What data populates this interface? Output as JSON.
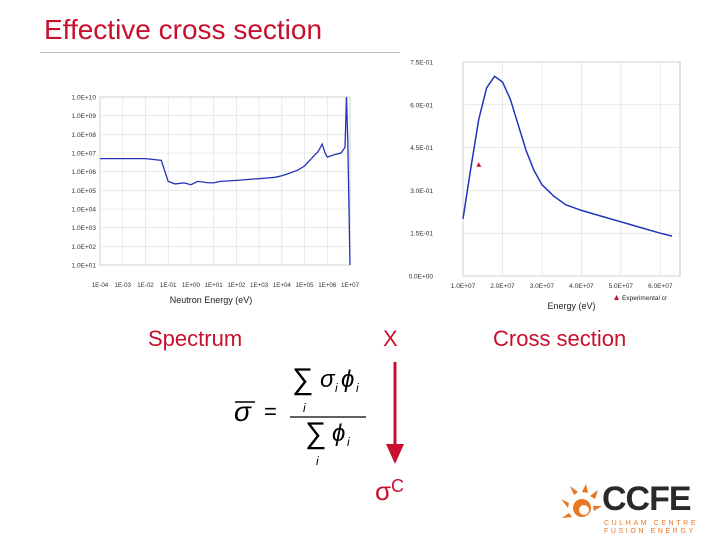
{
  "title": "Effective cross section",
  "labels": {
    "spectrum": "Spectrum",
    "times": "X",
    "cross_section": "Cross section",
    "result_symbol": "σ",
    "result_sub": "C"
  },
  "formula": {
    "lhs": "σ",
    "numerator": "σ",
    "numerator_flux": "ϕ",
    "denominator_flux": "ϕ",
    "index": "i",
    "sum": "∑",
    "equals": "="
  },
  "logo": {
    "name": "CCFE",
    "line1": "CULHAM CENTRE",
    "line2": "FUSION ENERGY"
  },
  "colors": {
    "accent": "#c8102e",
    "line": "#2233bb",
    "logo_orange": "#e87722"
  },
  "chart_data": [
    {
      "type": "line",
      "scale": "log-log",
      "xlabel": "Neutron Energy (eV)",
      "ylabel": "",
      "x_ticks": [
        "1E-04",
        "1E-03",
        "1E-02",
        "1E-01",
        "1E+00",
        "1E+01",
        "1E+02",
        "1E+03",
        "1E+04",
        "1E+05",
        "1E+06",
        "1E+07"
      ],
      "y_ticks": [
        "1.0E+10",
        "1.0E+09",
        "1.0E+08",
        "1.0E+07",
        "1.0E+06",
        "1.0E+05",
        "1.0E+04",
        "1.0E+03",
        "1.0E+02",
        "1.0E+01"
      ],
      "xlim": [
        0.0001,
        10000000.0
      ],
      "ylim": [
        10,
        10000000000.0
      ],
      "grid": true,
      "series": [
        {
          "x": [
            0.0001,
            0.001,
            0.01,
            0.05,
            0.1,
            0.2,
            0.5,
            1,
            2,
            5,
            10,
            20,
            50,
            100,
            200,
            500,
            1000,
            2000,
            5000,
            10000.0,
            20000.0,
            50000.0,
            100000.0,
            200000.0,
            400000.0,
            600000.0,
            800000.0,
            1000000.0,
            2000000.0,
            4000000.0,
            6000000.0,
            7000000.0,
            8000000.0,
            10000000.0
          ],
          "y": [
            5000000.0,
            5000000.0,
            5000000.0,
            4000000.0,
            300000.0,
            220000.0,
            250000.0,
            200000.0,
            300000.0,
            260000.0,
            250000.0,
            300000.0,
            320000.0,
            340000.0,
            360000.0,
            400000.0,
            420000.0,
            450000.0,
            500000.0,
            600000.0,
            800000.0,
            1200000.0,
            2000000.0,
            5000000.0,
            12000000.0,
            30000000.0,
            10000000.0,
            6000000.0,
            8000000.0,
            10000000.0,
            20000000.0,
            10000000000.0,
            40000000.0,
            10
          ]
        }
      ]
    },
    {
      "type": "line",
      "xlabel": "Energy (eV)",
      "ylabel": "",
      "x_ticks": [
        "1.0E+07",
        "2.0E+07",
        "3.0E+07",
        "4.0E+07",
        "5.0E+07",
        "6.0E+07"
      ],
      "y_ticks": [
        "7.5E-01",
        "6.0E-01",
        "4.5E-01",
        "3.0E-01",
        "1.5E-01",
        "0.0E+00"
      ],
      "xlim": [
        10000000.0,
        65000000.0
      ],
      "ylim": [
        0,
        0.75
      ],
      "grid": true,
      "legend": {
        "position": "bottom-right",
        "entries": [
          "Experimental cr"
        ]
      },
      "series": [
        {
          "x": [
            10000000.0,
            12000000.0,
            14000000.0,
            16000000.0,
            18000000.0,
            20000000.0,
            22000000.0,
            24000000.0,
            26000000.0,
            28000000.0,
            30000000.0,
            33000000.0,
            36000000.0,
            40000000.0,
            45000000.0,
            50000000.0,
            55000000.0,
            60000000.0,
            63000000.0
          ],
          "y": [
            0.2,
            0.38,
            0.55,
            0.66,
            0.7,
            0.68,
            0.62,
            0.53,
            0.44,
            0.37,
            0.32,
            0.28,
            0.25,
            0.23,
            0.21,
            0.19,
            0.17,
            0.15,
            0.14
          ]
        },
        {
          "name": "Experimental cr",
          "marker": "triangle",
          "x": [
            14000000.0
          ],
          "y": [
            0.39
          ]
        }
      ]
    }
  ]
}
